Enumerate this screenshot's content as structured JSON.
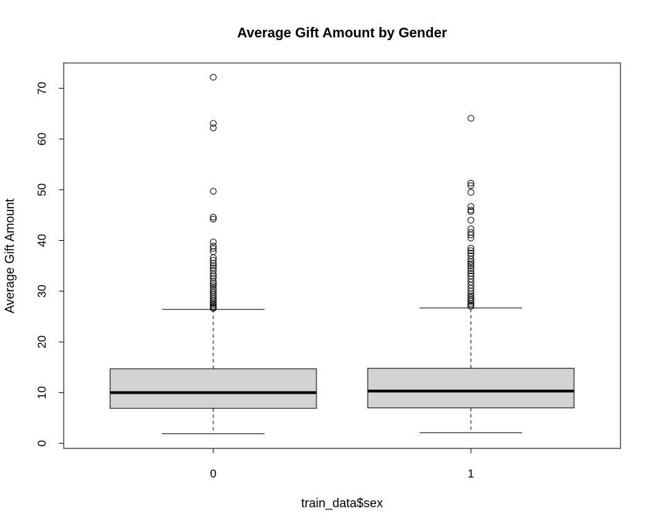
{
  "chart_data": {
    "type": "boxplot",
    "title": "Average Gift Amount by Gender",
    "xlabel": "train_data$sex",
    "ylabel": "Average Gift Amount",
    "categories": [
      "0",
      "1"
    ],
    "y_ticks": [
      "0",
      "10",
      "20",
      "30",
      "40",
      "50",
      "60",
      "70"
    ],
    "ylim": [
      -1,
      75
    ],
    "grid": false,
    "box_fill": "#d3d3d3",
    "boxes": [
      {
        "name": "0",
        "whisker_low": 1.9,
        "q1": 6.9,
        "median": 10.0,
        "q3": 14.7,
        "whisker_high": 26.4,
        "outliers": [
          72.2,
          63.1,
          62.2,
          49.7,
          44.6,
          44.2,
          39.7,
          38.9,
          38.4,
          37.8,
          36.6,
          36.1,
          35.5,
          35.0,
          34.6,
          34.1,
          33.4,
          33.0,
          32.6,
          31.9,
          31.5,
          31.1,
          30.6,
          30.2,
          29.8,
          29.4,
          29.0,
          28.6,
          28.2,
          27.9,
          27.6,
          27.3,
          27.0,
          26.8,
          26.6
        ]
      },
      {
        "name": "1",
        "whisker_low": 2.1,
        "q1": 7.0,
        "median": 10.3,
        "q3": 14.8,
        "whisker_high": 26.7,
        "outliers": [
          64.1,
          51.3,
          50.8,
          49.5,
          46.7,
          46.0,
          45.7,
          44.0,
          42.3,
          41.6,
          41.1,
          40.5,
          38.5,
          38.0,
          37.5,
          37.0,
          36.3,
          35.8,
          35.4,
          35.0,
          34.5,
          34.0,
          33.5,
          33.0,
          32.4,
          31.8,
          31.2,
          30.6,
          30.0,
          29.5,
          29.1,
          28.7,
          28.3,
          28.0,
          27.6,
          27.3,
          27.0
        ]
      }
    ]
  }
}
